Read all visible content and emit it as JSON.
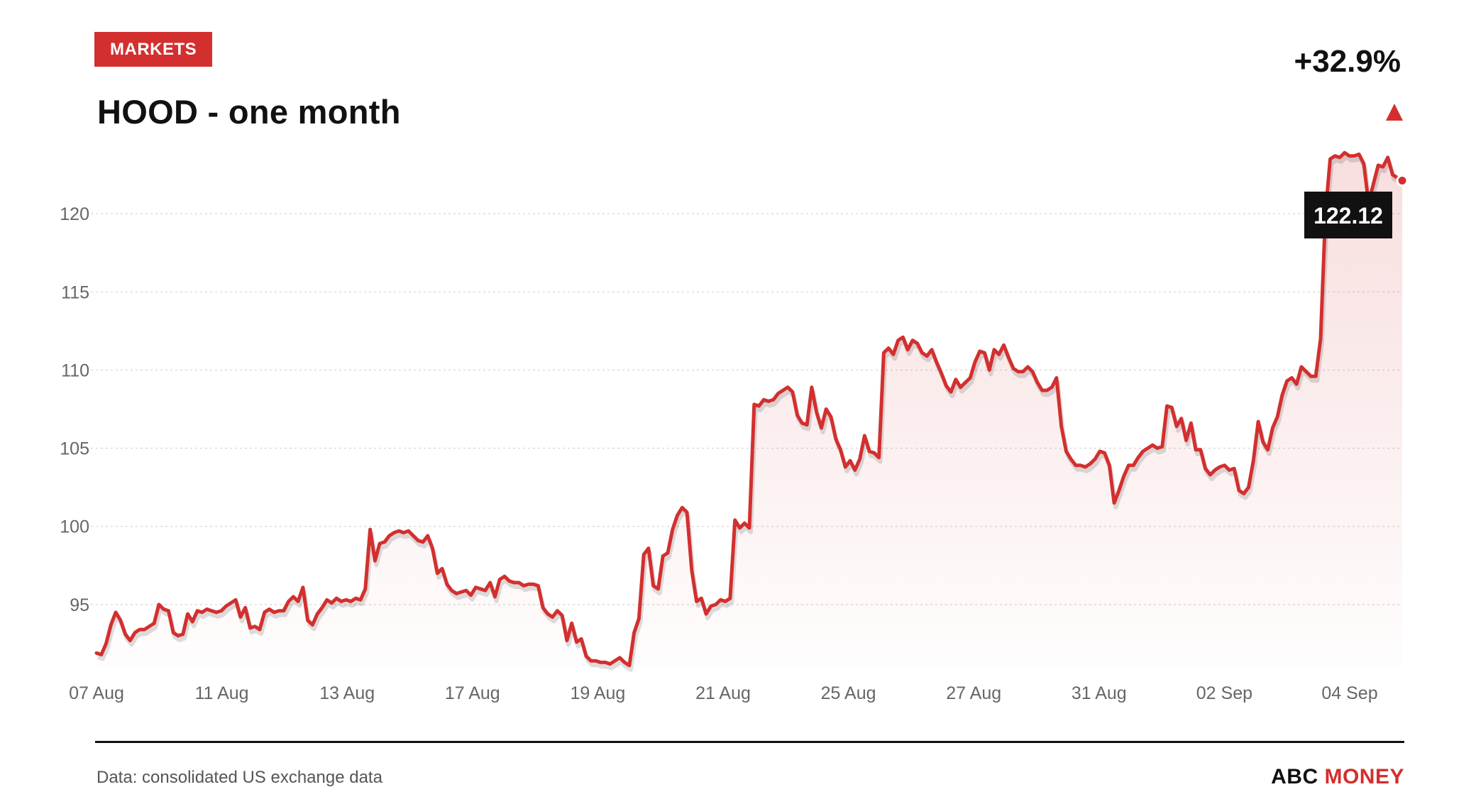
{
  "header": {
    "badge": "MARKETS",
    "title": "HOOD - one month",
    "change": "+32.9%",
    "change_direction": "up"
  },
  "footer": {
    "source": "Data: consolidated US exchange data",
    "brand_part1": "ABC",
    "brand_part2": "MONEY"
  },
  "colors": {
    "accent": "#d32f2f",
    "text": "#111111",
    "muted": "#666666",
    "grid": "#dcdcdc",
    "tooltip_bg": "#111111"
  },
  "chart_data": {
    "type": "area",
    "title": "HOOD - one month",
    "xlabel": "",
    "ylabel": "",
    "grid": true,
    "legend": "none",
    "ylim": [
      91,
      125.5
    ],
    "yticks": [
      95,
      100,
      105,
      110,
      115,
      120
    ],
    "x_ticks": [
      "07 Aug",
      "11 Aug",
      "13 Aug",
      "17 Aug",
      "19 Aug",
      "21 Aug",
      "25 Aug",
      "27 Aug",
      "31 Aug",
      "02 Sep",
      "04 Sep"
    ],
    "last_value_label": "122.12",
    "series": [
      {
        "values": [
          91.9,
          91.8,
          92.5,
          93.7,
          94.5,
          94.0,
          93.1,
          92.7,
          93.2,
          93.4,
          93.4,
          93.6,
          93.8,
          95.0,
          94.7,
          94.6,
          93.2,
          93.0,
          93.1,
          94.4,
          93.9,
          94.6,
          94.5,
          94.7,
          94.6,
          94.5,
          94.6,
          94.9,
          95.1,
          95.3,
          94.2,
          94.8,
          93.5,
          93.6,
          93.4,
          94.5,
          94.7,
          94.5,
          94.6,
          94.6,
          95.2,
          95.5,
          95.2,
          96.1,
          94.0,
          93.7,
          94.4,
          94.8,
          95.3,
          95.1,
          95.4,
          95.2,
          95.3,
          95.2,
          95.4,
          95.3,
          96.0,
          99.8,
          97.8,
          98.9,
          99.0,
          99.4,
          99.6,
          99.7,
          99.6,
          99.7,
          99.4,
          99.1,
          99.0,
          99.4,
          98.6,
          97.0,
          97.3,
          96.3,
          95.9,
          95.7,
          95.8,
          95.9,
          95.6,
          96.1,
          96.0,
          95.9,
          96.4,
          95.5,
          96.6,
          96.8,
          96.5,
          96.4,
          96.4,
          96.2,
          96.3,
          96.3,
          96.2,
          94.8,
          94.4,
          94.2,
          94.6,
          94.3,
          92.7,
          93.8,
          92.6,
          92.8,
          91.7,
          91.4,
          91.4,
          91.3,
          91.3,
          91.2,
          91.4,
          91.6,
          91.3,
          91.1,
          93.2,
          94.1,
          98.2,
          98.6,
          96.2,
          96.0,
          98.1,
          98.3,
          99.8,
          100.7,
          101.2,
          100.9,
          97.2,
          95.2,
          95.4,
          94.4,
          94.9,
          95.0,
          95.3,
          95.2,
          95.4,
          100.4,
          99.9,
          100.2,
          99.9,
          107.8,
          107.7,
          108.1,
          108.0,
          108.1,
          108.5,
          108.7,
          108.9,
          108.6,
          107.1,
          106.6,
          106.5,
          108.9,
          107.3,
          106.3,
          107.5,
          107.0,
          105.6,
          104.9,
          103.8,
          104.2,
          103.6,
          104.3,
          105.8,
          104.8,
          104.7,
          104.4,
          111.1,
          111.4,
          111.0,
          111.9,
          112.1,
          111.3,
          111.9,
          111.7,
          111.1,
          110.9,
          111.3,
          110.5,
          109.8,
          109.0,
          108.6,
          109.4,
          108.9,
          109.2,
          109.5,
          110.5,
          111.2,
          111.1,
          110.0,
          111.3,
          111.0,
          111.6,
          110.8,
          110.1,
          109.9,
          109.9,
          110.2,
          109.9,
          109.2,
          108.7,
          108.7,
          108.9,
          109.5,
          106.4,
          104.8,
          104.3,
          103.9,
          103.9,
          103.8,
          104.0,
          104.3,
          104.8,
          104.7,
          103.9,
          101.5,
          102.3,
          103.2,
          103.9,
          103.9,
          104.4,
          104.8,
          105.0,
          105.2,
          105.0,
          105.1,
          107.7,
          107.6,
          106.4,
          106.9,
          105.5,
          106.6,
          104.9,
          104.9,
          103.7,
          103.3,
          103.6,
          103.8,
          103.9,
          103.6,
          103.7,
          102.3,
          102.1,
          102.5,
          104.2,
          106.7,
          105.4,
          104.9,
          106.3,
          107.0,
          108.4,
          109.3,
          109.5,
          109.1,
          110.2,
          109.9,
          109.6,
          109.6,
          112.0,
          120.0,
          123.5,
          123.7,
          123.6,
          123.9,
          123.7,
          123.7,
          123.8,
          123.2,
          120.7,
          121.9,
          123.1,
          123.0,
          123.6,
          122.5,
          122.3,
          122.12
        ]
      }
    ]
  }
}
